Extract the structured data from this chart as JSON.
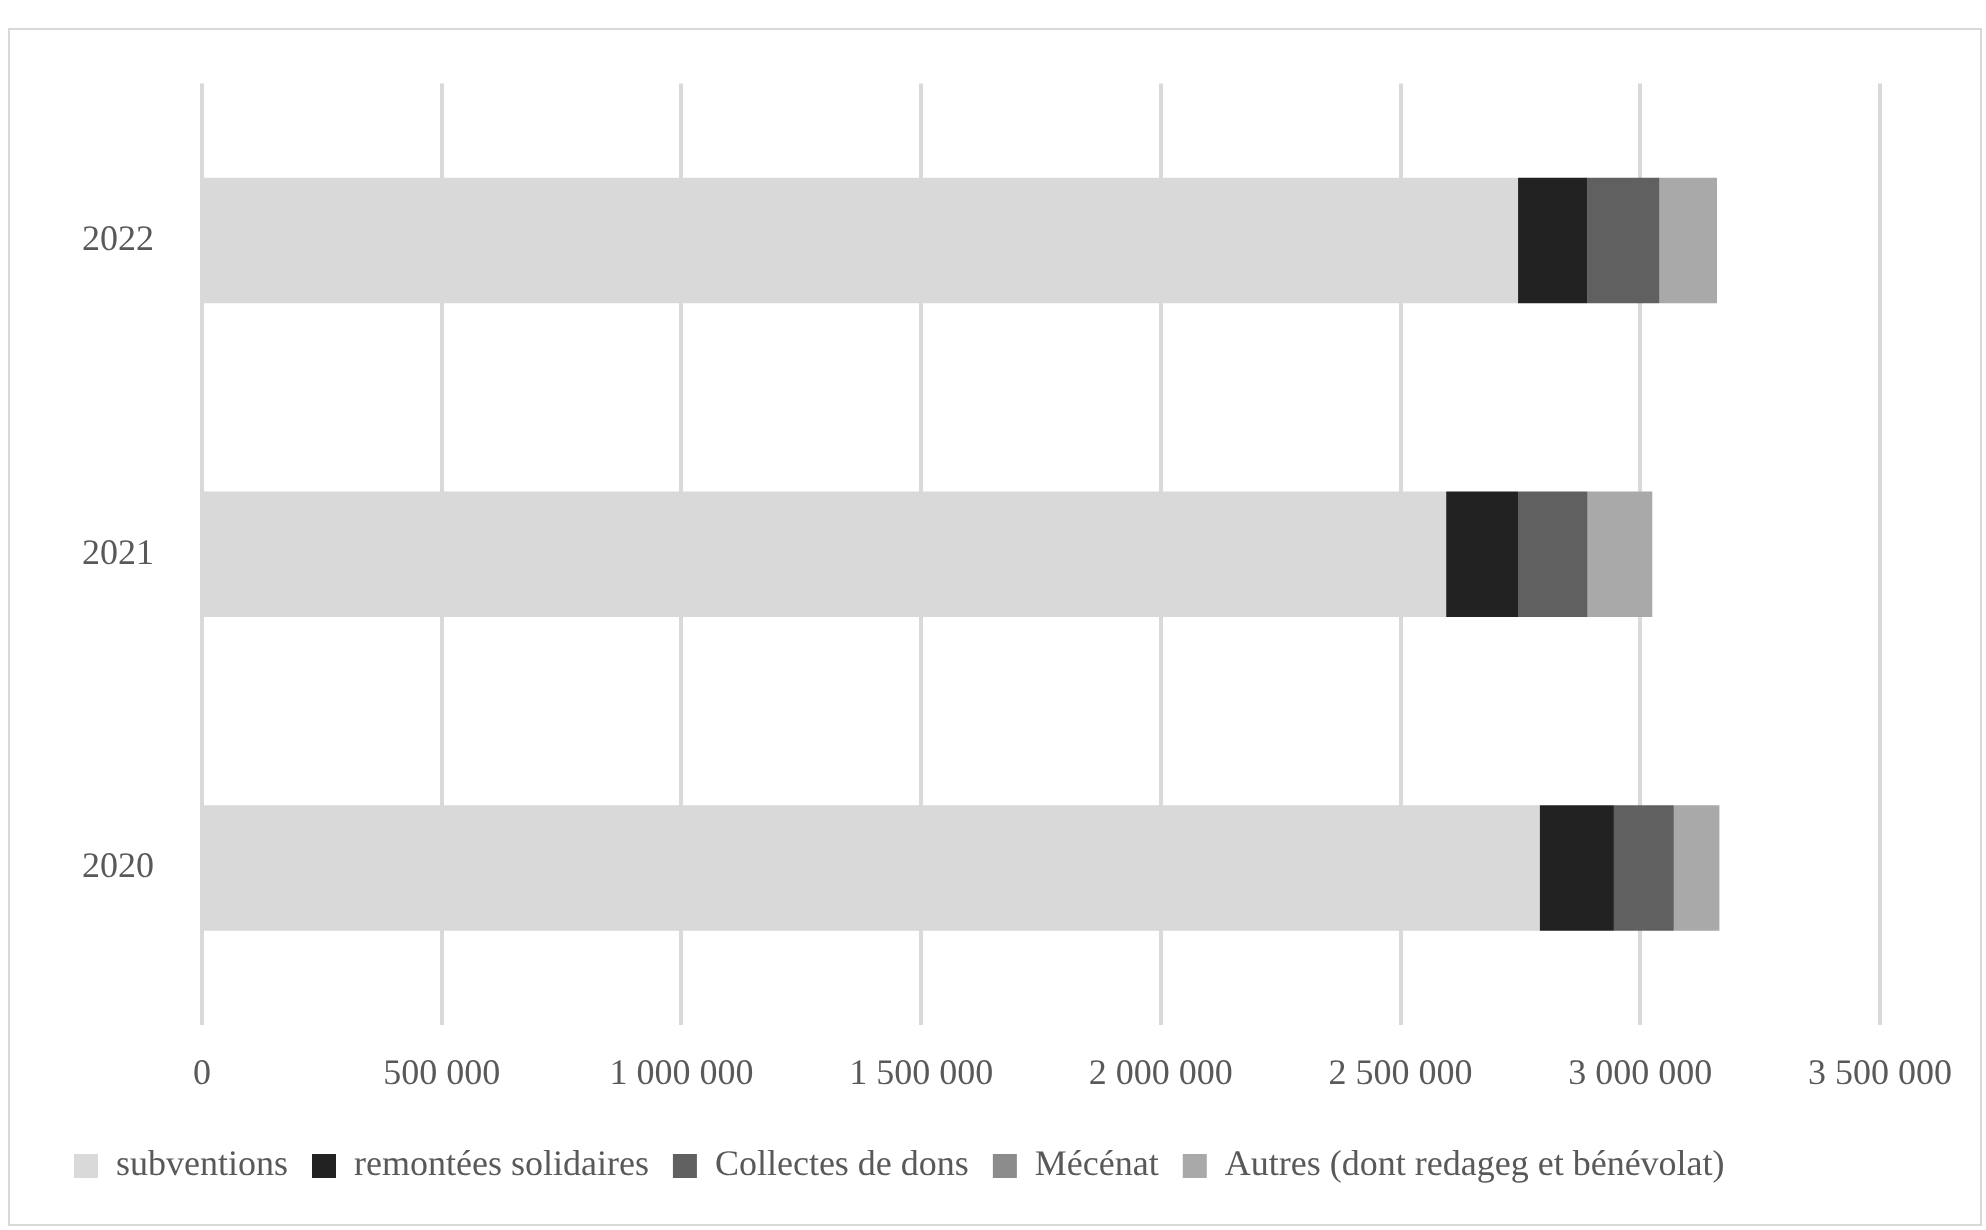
{
  "chart_data": {
    "type": "bar",
    "orientation": "horizontal",
    "stacked": true,
    "categories": [
      "2022",
      "2021",
      "2020"
    ],
    "series": [
      {
        "name": "subventions",
        "color": "#d9d9d9",
        "values": [
          2745000,
          2595000,
          2790000
        ]
      },
      {
        "name": "remontées solidaires",
        "color": "#222222",
        "values": [
          145000,
          150000,
          155000
        ]
      },
      {
        "name": "Collectes de dons",
        "color": "#606060",
        "values": [
          150000,
          145000,
          125000
        ]
      },
      {
        "name": "Mécénat",
        "color": "#8c8c8c",
        "values": [
          0,
          0,
          0
        ]
      },
      {
        "name": "Autres (dont redageg et bénévolat)",
        "color": "#a9a9a9",
        "values": [
          120000,
          135000,
          95000
        ]
      }
    ],
    "xlim": [
      0,
      3500000
    ],
    "xticks": [
      {
        "value": 0,
        "label": "0"
      },
      {
        "value": 500000,
        "label": "500 000"
      },
      {
        "value": 1000000,
        "label": "1 000 000"
      },
      {
        "value": 1500000,
        "label": "1 500 000"
      },
      {
        "value": 2000000,
        "label": "2 000 000"
      },
      {
        "value": 2500000,
        "label": "2 500 000"
      },
      {
        "value": 3000000,
        "label": "3 000 000"
      },
      {
        "value": 3500000,
        "label": "3 500 000"
      }
    ],
    "grid": "x",
    "legend": "bottom"
  }
}
